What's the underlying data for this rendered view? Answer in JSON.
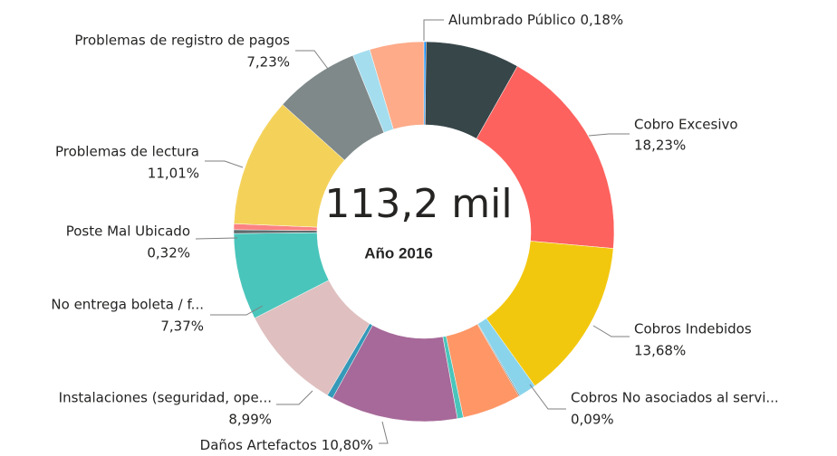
{
  "chart_data": {
    "type": "donut",
    "center_label": "113,2 mil",
    "subtitle": "Año 2016",
    "categories": [
      "Alumbrado Público",
      null,
      "Cobro Excesivo",
      "Cobros Indebidos",
      null,
      "Cobros No asociados al servi...",
      null,
      null,
      "Daños Artefactos",
      null,
      "Instalaciones (seguridad, ope...",
      "No entrega boleta / f...",
      "Poste Mal Ubicado",
      null,
      "Problemas de lectura",
      "Problemas de registro de pagos",
      null,
      null
    ],
    "values": [
      0.18,
      8.0,
      18.23,
      13.68,
      1.5,
      0.09,
      5.0,
      0.5,
      10.8,
      0.5,
      8.99,
      7.37,
      0.32,
      0.5,
      11.01,
      7.23,
      1.5,
      4.6
    ],
    "value_labels": [
      "0,18%",
      null,
      "18,23%",
      "13,68%",
      null,
      "0,09%",
      null,
      null,
      "10,80%",
      null,
      "8,99%",
      "7,37%",
      "0,32%",
      null,
      "11,01%",
      "7,23%",
      null,
      null
    ],
    "colors": [
      "#118DFF",
      "#374649",
      "#FD625E",
      "#F2C80F",
      "#8AD4EB",
      "#5F6B6D",
      "#FE9666",
      "#4AC5BB",
      "#A66999",
      "#3599B8",
      "#DFBFBF",
      "#4AC5BB",
      "#5F6B6D",
      "#FB8281",
      "#F4D25A",
      "#7F898A",
      "#A4DDEE",
      "#FDAB89"
    ]
  }
}
